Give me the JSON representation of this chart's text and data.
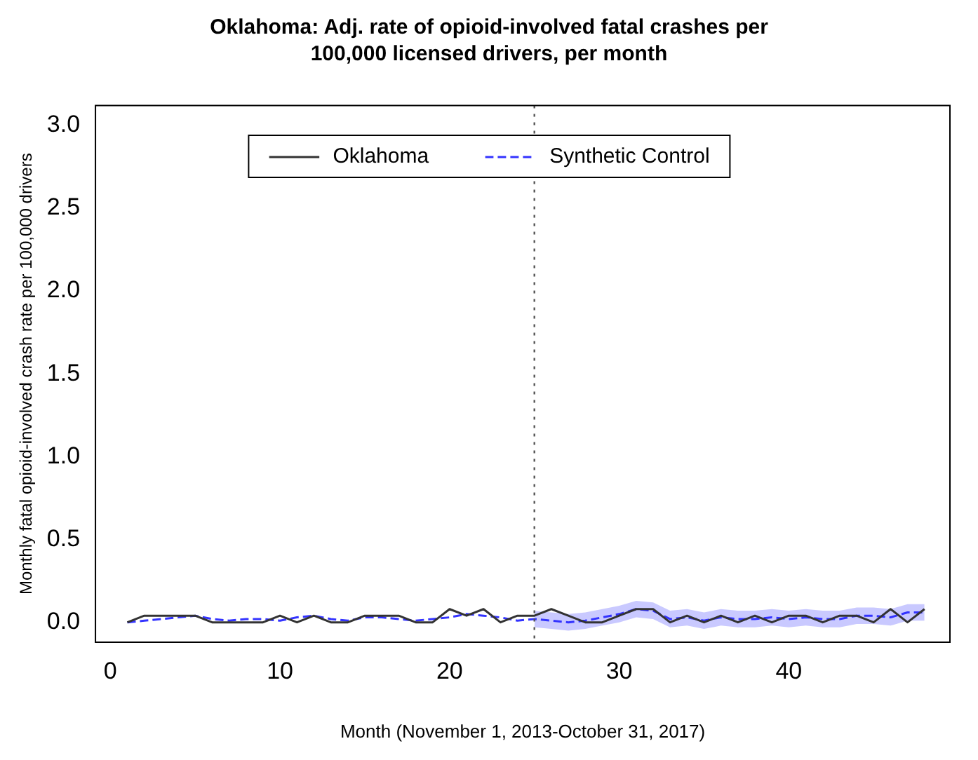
{
  "chart_data": {
    "type": "line",
    "title": "Oklahoma: Adj. rate of opioid-involved fatal crashes per 100,000 licensed drivers,  per month",
    "xlabel": "Month (November 1, 2013-October 31, 2017)",
    "ylabel": "Monthly fatal opioid-involved crash rate per 100,000 drivers",
    "x": [
      1,
      2,
      3,
      4,
      5,
      6,
      7,
      8,
      9,
      10,
      11,
      12,
      13,
      14,
      15,
      16,
      17,
      18,
      19,
      20,
      21,
      22,
      23,
      24,
      25,
      26,
      27,
      28,
      29,
      30,
      31,
      32,
      33,
      34,
      35,
      36,
      37,
      38,
      39,
      40,
      41,
      42,
      43,
      44,
      45,
      46,
      47,
      48
    ],
    "series": [
      {
        "name": "Oklahoma",
        "color": "#333333",
        "line_style": "solid",
        "values": [
          0,
          0.04,
          0.04,
          0.04,
          0.04,
          0,
          0,
          0,
          0,
          0.04,
          0,
          0.04,
          0,
          0,
          0.04,
          0.04,
          0.04,
          0,
          0,
          0.08,
          0.04,
          0.08,
          0,
          0.04,
          0.04,
          0.08,
          0.04,
          0,
          0,
          0.04,
          0.08,
          0.08,
          0,
          0.04,
          0,
          0.04,
          0,
          0.04,
          0,
          0.04,
          0.04,
          0,
          0.04,
          0.04,
          0,
          0.08,
          0,
          0.08
        ]
      },
      {
        "name": "Synthetic Control",
        "color": "#3333ff",
        "line_style": "dashed",
        "values": [
          0,
          0.01,
          0.02,
          0.03,
          0.04,
          0.02,
          0.01,
          0.02,
          0.02,
          0.01,
          0.03,
          0.04,
          0.02,
          0.01,
          0.03,
          0.03,
          0.02,
          0.01,
          0.02,
          0.03,
          0.05,
          0.04,
          0.03,
          0.01,
          0.02,
          0.01,
          0,
          0.01,
          0.03,
          0.05,
          0.08,
          0.07,
          0.02,
          0.03,
          0.01,
          0.03,
          0.02,
          0.02,
          0.03,
          0.02,
          0.03,
          0.02,
          0.02,
          0.04,
          0.04,
          0.03,
          0.06,
          0.06
        ],
        "lower": [
          null,
          null,
          null,
          null,
          null,
          null,
          null,
          null,
          null,
          null,
          null,
          null,
          null,
          null,
          null,
          null,
          null,
          null,
          null,
          null,
          null,
          null,
          null,
          null,
          -0.03,
          -0.04,
          -0.05,
          -0.04,
          -0.02,
          0,
          0.03,
          0.02,
          -0.03,
          -0.02,
          -0.04,
          -0.02,
          -0.03,
          -0.03,
          -0.02,
          -0.03,
          -0.02,
          -0.03,
          -0.03,
          -0.01,
          -0.01,
          -0.02,
          0.01,
          0.01
        ],
        "upper": [
          null,
          null,
          null,
          null,
          null,
          null,
          null,
          null,
          null,
          null,
          null,
          null,
          null,
          null,
          null,
          null,
          null,
          null,
          null,
          null,
          null,
          null,
          null,
          null,
          0.07,
          0.06,
          0.05,
          0.06,
          0.08,
          0.1,
          0.13,
          0.12,
          0.07,
          0.08,
          0.06,
          0.08,
          0.07,
          0.07,
          0.08,
          0.07,
          0.08,
          0.07,
          0.07,
          0.09,
          0.09,
          0.08,
          0.11,
          0.11
        ]
      }
    ],
    "xlim": [
      -0.88,
      49.5
    ],
    "xticks": [
      0,
      10,
      20,
      30,
      40
    ],
    "ylim": [
      -0.12,
      3.12
    ],
    "yticks": [
      {
        "value": 0,
        "label": "0.0"
      },
      0.5,
      {
        "value": 1,
        "label": "1.0"
      },
      1.5,
      {
        "value": 2,
        "label": "2.0"
      },
      2.5,
      {
        "value": 3,
        "label": "3.0"
      }
    ],
    "ref_lines": [
      {
        "axis": "x",
        "value": 25,
        "line_style": "dotted",
        "color": "#555555"
      }
    ],
    "grid": false,
    "legend": "top",
    "marker": "none"
  }
}
